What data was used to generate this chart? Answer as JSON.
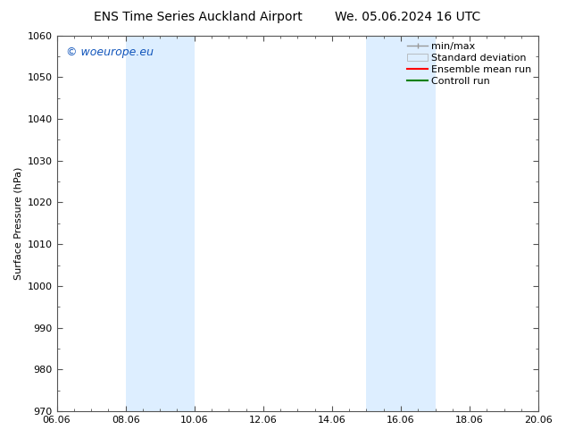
{
  "title_left": "ENS Time Series Auckland Airport",
  "title_right": "We. 05.06.2024 16 UTC",
  "ylabel": "Surface Pressure (hPa)",
  "ylim": [
    970,
    1060
  ],
  "yticks": [
    970,
    980,
    990,
    1000,
    1010,
    1020,
    1030,
    1040,
    1050,
    1060
  ],
  "xtick_labels": [
    "06.06",
    "08.06",
    "10.06",
    "12.06",
    "14.06",
    "16.06",
    "18.06",
    "20.06"
  ],
  "xtick_positions": [
    0,
    2,
    4,
    6,
    8,
    10,
    12,
    14
  ],
  "xlim": [
    0,
    14
  ],
  "shaded_bands": [
    {
      "x_start": 2,
      "x_end": 4
    },
    {
      "x_start": 9,
      "x_end": 11
    }
  ],
  "shaded_color": "#ddeeff",
  "watermark_text": "© woeurope.eu",
  "watermark_color": "#1155bb",
  "legend_items": [
    {
      "label": "min/max",
      "color": "#aaaaaa"
    },
    {
      "label": "Standard deviation",
      "color": "#ccddee"
    },
    {
      "label": "Ensemble mean run",
      "color": "red"
    },
    {
      "label": "Controll run",
      "color": "green"
    }
  ],
  "bg_color": "#ffffff",
  "spine_color": "#555555",
  "tick_color": "#555555",
  "title_fontsize": 10,
  "tick_fontsize": 8,
  "legend_fontsize": 8,
  "watermark_fontsize": 9
}
